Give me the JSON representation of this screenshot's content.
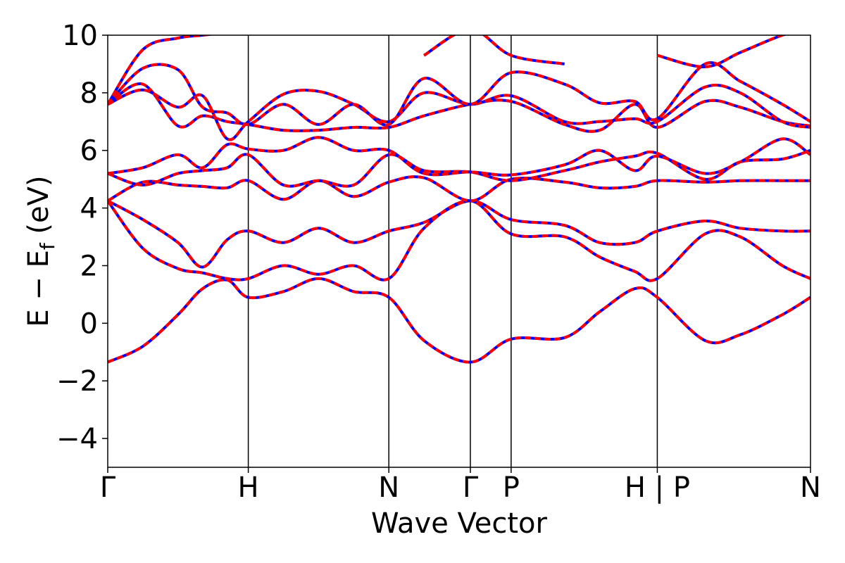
{
  "chart_data": {
    "type": "line",
    "title": "",
    "xlabel": "Wave Vector",
    "ylabel": "E − E",
    "ylabel_sub": "f",
    "ylabel_unit": " (eV)",
    "ylim": [
      -5,
      10
    ],
    "yticks": [
      -4,
      -2,
      0,
      2,
      4,
      6,
      8,
      10
    ],
    "ytick_labels": [
      "−4",
      "−2",
      "0",
      "2",
      "4",
      "6",
      "8",
      "10"
    ],
    "xlim": [
      0,
      10
    ],
    "kpoints": [
      {
        "label": "Γ",
        "x": 0
      },
      {
        "label": "H",
        "x": 2
      },
      {
        "label": "N",
        "x": 4
      },
      {
        "label": "Γ",
        "x": 5.16
      },
      {
        "label": "P",
        "x": 5.74
      },
      {
        "label": "H | P",
        "x": 7.82
      },
      {
        "label": "N",
        "x": 10
      }
    ],
    "grid": false,
    "line_style": {
      "color": "#ff0000",
      "overlay_color": "#0000ff",
      "overlay_dashed": true
    },
    "series": [
      {
        "x": [
          0,
          0.5,
          1.0,
          1.35,
          1.7,
          2.0,
          2.5,
          3.0,
          3.5,
          4.0,
          4.5,
          5.16,
          5.74,
          6.5,
          7.0,
          7.5,
          7.82,
          8.5,
          9.0,
          9.6,
          10.0
        ],
        "y": [
          -1.35,
          -0.8,
          0.3,
          1.2,
          1.5,
          0.9,
          1.1,
          1.55,
          1.1,
          0.9,
          -0.6,
          -1.35,
          -0.55,
          -0.5,
          0.4,
          1.2,
          0.9,
          -0.6,
          -0.4,
          0.3,
          0.9
        ]
      },
      {
        "x": [
          0,
          0.5,
          1.0,
          1.35,
          1.7,
          2.0,
          2.5,
          3.0,
          3.5,
          4.0,
          4.5,
          5.16,
          5.74,
          6.5,
          7.0,
          7.5,
          7.82,
          8.5,
          9.0,
          9.6,
          10.0
        ],
        "y": [
          4.25,
          2.6,
          1.9,
          1.75,
          1.55,
          1.55,
          2.0,
          1.7,
          2.0,
          1.55,
          3.3,
          4.25,
          3.1,
          3.0,
          2.3,
          1.8,
          1.55,
          3.1,
          3.0,
          2.0,
          1.55
        ]
      },
      {
        "x": [
          0,
          0.5,
          1.0,
          1.35,
          1.7,
          2.0,
          2.5,
          3.0,
          3.5,
          4.0,
          4.5,
          5.16,
          5.74,
          6.5,
          7.0,
          7.5,
          7.82,
          8.5,
          9.0,
          9.6,
          10.0
        ],
        "y": [
          4.25,
          3.6,
          2.8,
          1.95,
          2.9,
          3.2,
          2.8,
          3.3,
          2.8,
          3.2,
          3.5,
          4.25,
          3.6,
          3.4,
          2.8,
          2.8,
          3.2,
          3.55,
          3.3,
          3.2,
          3.2
        ]
      },
      {
        "x": [
          0,
          0.5,
          1.0,
          1.35,
          1.7,
          2.0,
          2.5,
          3.0,
          3.5,
          4.0,
          4.5,
          5.16,
          5.74,
          6.5,
          7.0,
          7.5,
          7.82,
          8.5,
          9.0,
          9.6,
          10.0
        ],
        "y": [
          4.25,
          4.9,
          4.8,
          4.75,
          4.7,
          4.95,
          4.3,
          4.95,
          4.4,
          4.9,
          5.05,
          4.25,
          5.0,
          4.9,
          4.7,
          4.75,
          4.95,
          4.9,
          4.95,
          4.95,
          4.95
        ]
      },
      {
        "x": [
          0,
          0.5,
          1.0,
          1.35,
          1.7,
          2.0,
          2.5,
          3.0,
          3.5,
          4.0,
          4.5,
          5.16,
          5.74,
          6.5,
          7.0,
          7.5,
          7.82,
          8.5,
          9.0,
          9.6,
          10.0
        ],
        "y": [
          5.2,
          4.8,
          5.2,
          5.3,
          5.4,
          5.85,
          4.8,
          4.95,
          4.8,
          5.85,
          5.3,
          5.25,
          4.95,
          5.3,
          5.6,
          5.8,
          5.9,
          5.0,
          5.6,
          5.7,
          6.0
        ]
      },
      {
        "x": [
          0,
          0.5,
          1.0,
          1.35,
          1.7,
          2.0,
          2.5,
          3.0,
          3.5,
          4.0,
          4.5,
          5.16,
          5.74,
          6.5,
          7.0,
          7.5,
          7.82,
          8.5,
          9.0,
          9.6,
          10.0
        ],
        "y": [
          5.2,
          5.4,
          5.85,
          5.4,
          6.2,
          6.05,
          6.0,
          6.45,
          6.0,
          6.0,
          5.2,
          5.25,
          5.15,
          5.5,
          6.0,
          5.3,
          5.8,
          5.2,
          5.6,
          6.4,
          5.85
        ]
      },
      {
        "x": [
          0,
          0.5,
          1.0,
          1.35,
          1.7,
          2.0,
          2.5,
          3.0,
          3.5,
          4.0,
          4.5,
          5.16,
          5.74,
          6.5,
          7.0,
          7.5,
          7.82,
          8.5,
          9.0,
          9.6,
          10.0
        ],
        "y": [
          7.6,
          8.3,
          6.85,
          7.2,
          7.0,
          6.9,
          6.7,
          6.7,
          6.8,
          6.8,
          7.2,
          7.6,
          7.7,
          6.9,
          6.7,
          7.6,
          6.8,
          7.7,
          7.5,
          7.0,
          6.85
        ]
      },
      {
        "x": [
          0,
          0.5,
          1.0,
          1.35,
          1.7,
          2.0,
          2.5,
          3.0,
          3.5,
          4.0,
          4.5,
          5.16,
          5.74,
          6.5,
          7.0,
          7.5,
          7.82,
          8.5,
          9.0,
          9.6,
          10.0
        ],
        "y": [
          7.6,
          8.1,
          7.5,
          7.9,
          6.4,
          7.0,
          7.95,
          8.05,
          7.6,
          7.0,
          8.0,
          7.6,
          7.9,
          7.0,
          7.0,
          7.1,
          7.0,
          8.2,
          8.0,
          7.0,
          6.8
        ]
      },
      {
        "x": [
          0,
          0.5,
          1.0,
          1.35,
          1.7,
          2.0,
          2.5,
          3.0,
          3.5,
          4.0,
          4.5,
          5.16,
          5.74,
          6.5,
          7.0,
          7.5,
          7.82,
          8.5,
          9.0,
          9.6,
          10.0
        ],
        "y": [
          7.6,
          8.85,
          8.8,
          7.5,
          7.3,
          6.9,
          7.6,
          6.9,
          7.6,
          6.9,
          8.5,
          7.6,
          8.7,
          8.3,
          7.65,
          7.7,
          7.1,
          9.0,
          8.4,
          7.6,
          7.0
        ]
      },
      {
        "x": [
          0,
          0.5,
          1.0,
          1.35,
          1.7,
          2.0
        ],
        "y": [
          7.6,
          9.5,
          9.9,
          10.0,
          10.1,
          10.2
        ]
      },
      {
        "x": [
          4.5,
          5.16,
          5.74,
          6.5
        ],
        "y": [
          9.3,
          10.2,
          9.3,
          9.0
        ]
      },
      {
        "x": [
          7.82,
          8.5,
          9.0,
          9.6,
          10.0
        ],
        "y": [
          9.3,
          8.9,
          9.4,
          10.0,
          10.2
        ]
      }
    ]
  }
}
